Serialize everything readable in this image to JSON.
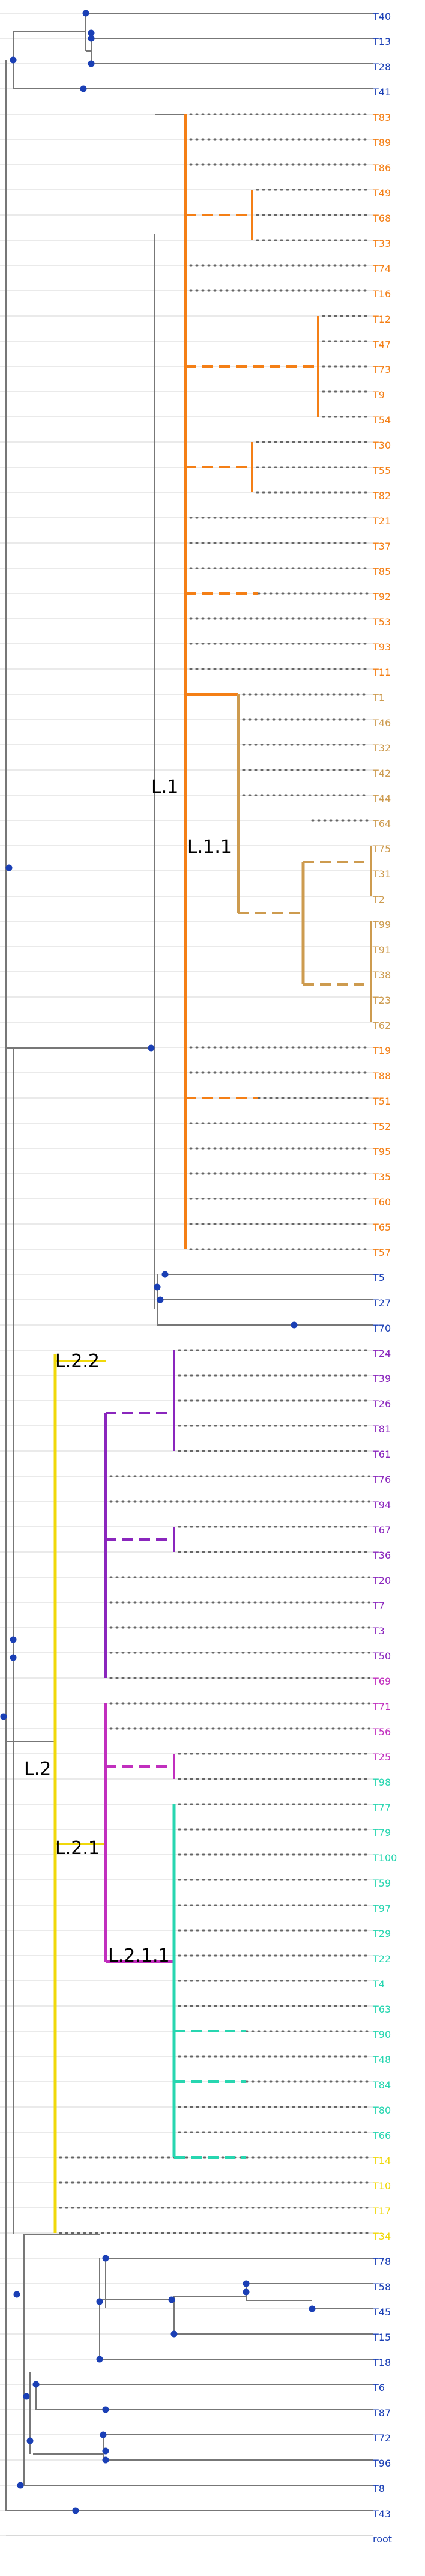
{
  "colors": {
    "navy": "#1a3fb5",
    "gray": "#777777",
    "orange": "#f47f16",
    "tan": "#cd9b4f",
    "purple": "#8a26bd",
    "magenta": "#c12fbe",
    "teal": "#27d6b0",
    "yellow": "#f0d80a"
  },
  "clade_labels": [
    {
      "text": "L.1",
      "color": "orange"
    },
    {
      "text": "L.1.1",
      "color": "tan"
    },
    {
      "text": "L.2",
      "color": "yellow"
    },
    {
      "text": "L.2.2",
      "color": "purple"
    },
    {
      "text": "L.2.1",
      "color": "magenta"
    },
    {
      "text": "L.2.1.1",
      "color": "teal"
    }
  ],
  "tips": [
    {
      "label": "T40",
      "color": "navy"
    },
    {
      "label": "T13",
      "color": "navy"
    },
    {
      "label": "T28",
      "color": "navy"
    },
    {
      "label": "T41",
      "color": "navy"
    },
    {
      "label": "T83",
      "color": "orange"
    },
    {
      "label": "T89",
      "color": "orange"
    },
    {
      "label": "T86",
      "color": "orange"
    },
    {
      "label": "T49",
      "color": "orange"
    },
    {
      "label": "T68",
      "color": "orange"
    },
    {
      "label": "T33",
      "color": "orange"
    },
    {
      "label": "T74",
      "color": "orange"
    },
    {
      "label": "T16",
      "color": "orange"
    },
    {
      "label": "T12",
      "color": "orange"
    },
    {
      "label": "T47",
      "color": "orange"
    },
    {
      "label": "T73",
      "color": "orange"
    },
    {
      "label": "T9",
      "color": "orange"
    },
    {
      "label": "T54",
      "color": "orange"
    },
    {
      "label": "T30",
      "color": "orange"
    },
    {
      "label": "T55",
      "color": "orange"
    },
    {
      "label": "T82",
      "color": "orange"
    },
    {
      "label": "T21",
      "color": "orange"
    },
    {
      "label": "T37",
      "color": "orange"
    },
    {
      "label": "T85",
      "color": "orange"
    },
    {
      "label": "T92",
      "color": "orange"
    },
    {
      "label": "T53",
      "color": "orange"
    },
    {
      "label": "T93",
      "color": "orange"
    },
    {
      "label": "T11",
      "color": "orange"
    },
    {
      "label": "T1",
      "color": "tan"
    },
    {
      "label": "T46",
      "color": "tan"
    },
    {
      "label": "T32",
      "color": "tan"
    },
    {
      "label": "T42",
      "color": "tan"
    },
    {
      "label": "T44",
      "color": "tan"
    },
    {
      "label": "T64",
      "color": "tan"
    },
    {
      "label": "T75",
      "color": "tan"
    },
    {
      "label": "T31",
      "color": "tan"
    },
    {
      "label": "T2",
      "color": "tan"
    },
    {
      "label": "T99",
      "color": "tan"
    },
    {
      "label": "T91",
      "color": "tan"
    },
    {
      "label": "T38",
      "color": "tan"
    },
    {
      "label": "T23",
      "color": "tan"
    },
    {
      "label": "T62",
      "color": "tan"
    },
    {
      "label": "T19",
      "color": "orange"
    },
    {
      "label": "T88",
      "color": "orange"
    },
    {
      "label": "T51",
      "color": "orange"
    },
    {
      "label": "T52",
      "color": "orange"
    },
    {
      "label": "T95",
      "color": "orange"
    },
    {
      "label": "T35",
      "color": "orange"
    },
    {
      "label": "T60",
      "color": "orange"
    },
    {
      "label": "T65",
      "color": "orange"
    },
    {
      "label": "T57",
      "color": "orange"
    },
    {
      "label": "T5",
      "color": "navy"
    },
    {
      "label": "T27",
      "color": "navy"
    },
    {
      "label": "T70",
      "color": "navy"
    },
    {
      "label": "T24",
      "color": "purple"
    },
    {
      "label": "T39",
      "color": "purple"
    },
    {
      "label": "T26",
      "color": "purple"
    },
    {
      "label": "T81",
      "color": "purple"
    },
    {
      "label": "T61",
      "color": "purple"
    },
    {
      "label": "T76",
      "color": "purple"
    },
    {
      "label": "T94",
      "color": "purple"
    },
    {
      "label": "T67",
      "color": "purple"
    },
    {
      "label": "T36",
      "color": "purple"
    },
    {
      "label": "T20",
      "color": "purple"
    },
    {
      "label": "T7",
      "color": "purple"
    },
    {
      "label": "T3",
      "color": "purple"
    },
    {
      "label": "T50",
      "color": "purple"
    },
    {
      "label": "T69",
      "color": "magenta"
    },
    {
      "label": "T71",
      "color": "magenta"
    },
    {
      "label": "T56",
      "color": "magenta"
    },
    {
      "label": "T25",
      "color": "magenta"
    },
    {
      "label": "T98",
      "color": "teal"
    },
    {
      "label": "T77",
      "color": "teal"
    },
    {
      "label": "T79",
      "color": "teal"
    },
    {
      "label": "T100",
      "color": "teal"
    },
    {
      "label": "T59",
      "color": "teal"
    },
    {
      "label": "T97",
      "color": "teal"
    },
    {
      "label": "T29",
      "color": "teal"
    },
    {
      "label": "T22",
      "color": "teal"
    },
    {
      "label": "T4",
      "color": "teal"
    },
    {
      "label": "T63",
      "color": "teal"
    },
    {
      "label": "T90",
      "color": "teal"
    },
    {
      "label": "T48",
      "color": "teal"
    },
    {
      "label": "T84",
      "color": "teal"
    },
    {
      "label": "T80",
      "color": "teal"
    },
    {
      "label": "T66",
      "color": "teal"
    },
    {
      "label": "T14",
      "color": "yellow"
    },
    {
      "label": "T10",
      "color": "yellow"
    },
    {
      "label": "T17",
      "color": "yellow"
    },
    {
      "label": "T34",
      "color": "yellow"
    },
    {
      "label": "T78",
      "color": "navy"
    },
    {
      "label": "T58",
      "color": "navy"
    },
    {
      "label": "T45",
      "color": "navy"
    },
    {
      "label": "T15",
      "color": "navy"
    },
    {
      "label": "T18",
      "color": "navy"
    },
    {
      "label": "T6",
      "color": "navy"
    },
    {
      "label": "T87",
      "color": "navy"
    },
    {
      "label": "T72",
      "color": "navy"
    },
    {
      "label": "T96",
      "color": "navy"
    },
    {
      "label": "T8",
      "color": "navy"
    },
    {
      "label": "T43",
      "color": "navy"
    },
    {
      "label": "root",
      "color": "navy"
    }
  ]
}
